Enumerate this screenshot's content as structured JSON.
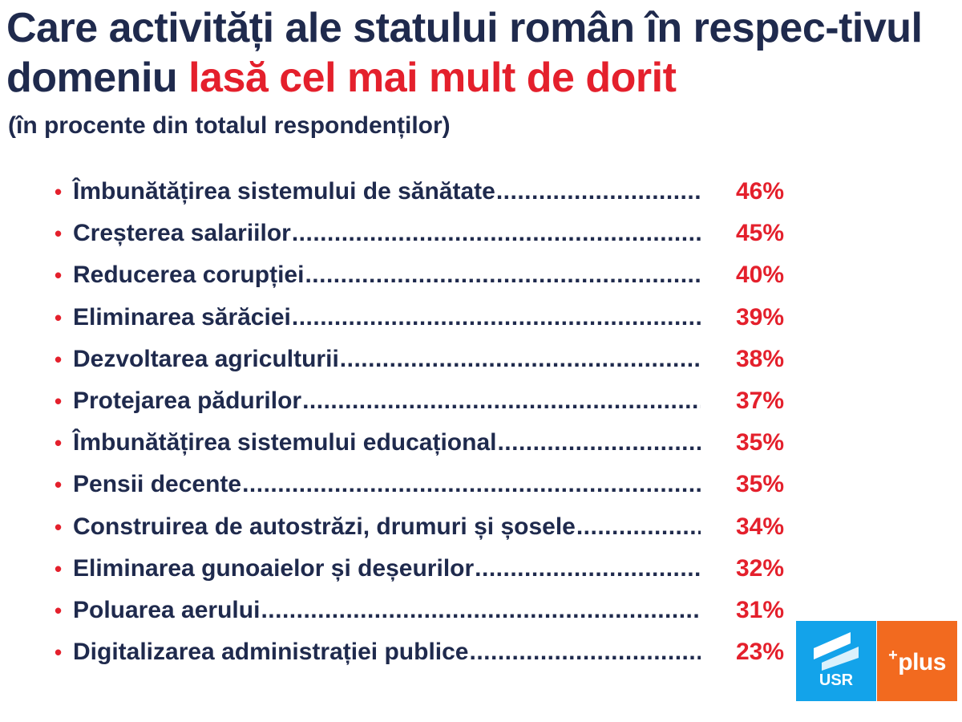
{
  "header": {
    "title_part1": "Care activități ale statului român în respec-tivul domeniu ",
    "title_highlight": "lasă cel mai mult de dorit",
    "subtitle": "(în procente din totalul respondenților)"
  },
  "items": [
    {
      "label": "Îmbunătățirea sistemului de sănătate",
      "value": "46%"
    },
    {
      "label": "Creșterea salariilor",
      "value": "45%"
    },
    {
      "label": "Reducerea corupției",
      "value": "40%"
    },
    {
      "label": "Eliminarea sărăciei",
      "value": "39%"
    },
    {
      "label": "Dezvoltarea agriculturii",
      "value": "38%"
    },
    {
      "label": "Protejarea pădurilor",
      "value": "37%"
    },
    {
      "label": "Îmbunătățirea sistemului educațional",
      "value": "35%"
    },
    {
      "label": "Pensii decente",
      "value": "35%"
    },
    {
      "label": "Construirea de autostrăzi, drumuri și șosele",
      "value": "34%"
    },
    {
      "label": "Eliminarea gunoaielor și deșeurilor",
      "value": "32%"
    },
    {
      "label": "Poluarea aerului",
      "value": "31%"
    },
    {
      "label": "Digitalizarea administrației publice",
      "value": "23%"
    }
  ],
  "bullet": "•",
  "logos": {
    "usr_text": "USR",
    "plus_sup": "+",
    "plus_text": "plus"
  },
  "colors": {
    "navy": "#1f2a4d",
    "red": "#e4202c",
    "usr_blue": "#13a3ea",
    "plus_orange": "#f26a1f"
  }
}
